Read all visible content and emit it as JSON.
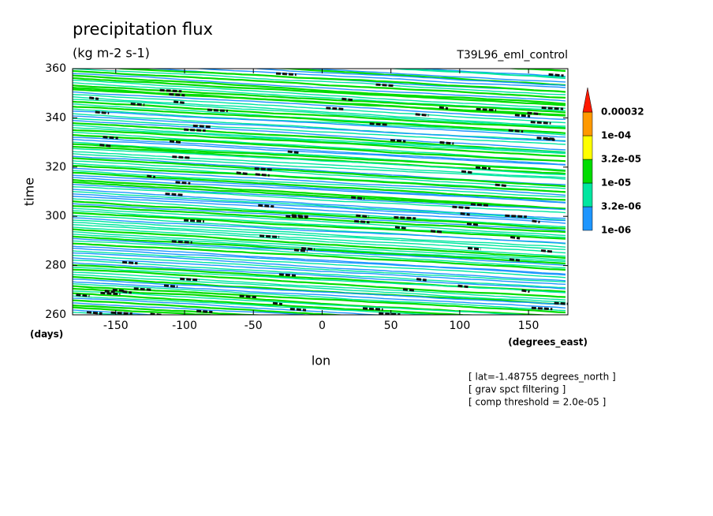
{
  "chart_data": {
    "type": "contour",
    "title": "precipitation flux",
    "units": "(kg m-2 s-1)",
    "dataset": "T39L96_eml_control",
    "x_label": "lon",
    "x_units": "(degrees_east)",
    "y_label": "time",
    "y_units": "(days)",
    "xlim": [
      -181.4,
      178.6
    ],
    "xticks": [
      -150,
      -100,
      -50,
      0,
      50,
      100,
      150
    ],
    "ylim": [
      260,
      360
    ],
    "yticks": [
      260,
      280,
      300,
      320,
      340,
      360
    ],
    "levels": [
      {
        "value": 1e-06,
        "label": "1e-06"
      },
      {
        "value": 3.2e-06,
        "label": "3.2e-06"
      },
      {
        "value": 1e-05,
        "label": "1e-05"
      },
      {
        "value": 3.2e-05,
        "label": "3.2e-05"
      },
      {
        "value": 0.0001,
        "label": "1e-04"
      },
      {
        "value": 0.00032,
        "label": "0.00032"
      }
    ],
    "colors": [
      "#1e96ff",
      "#00e6a0",
      "#00dc00",
      "#ffff00",
      "#ff9900",
      "#ff1a00"
    ],
    "notes": [
      "[ lat=-1.48755 degrees_north ]",
      "[ grav spct filtering ]",
      "[ comp threshold = 2.0e-05 ]"
    ]
  }
}
